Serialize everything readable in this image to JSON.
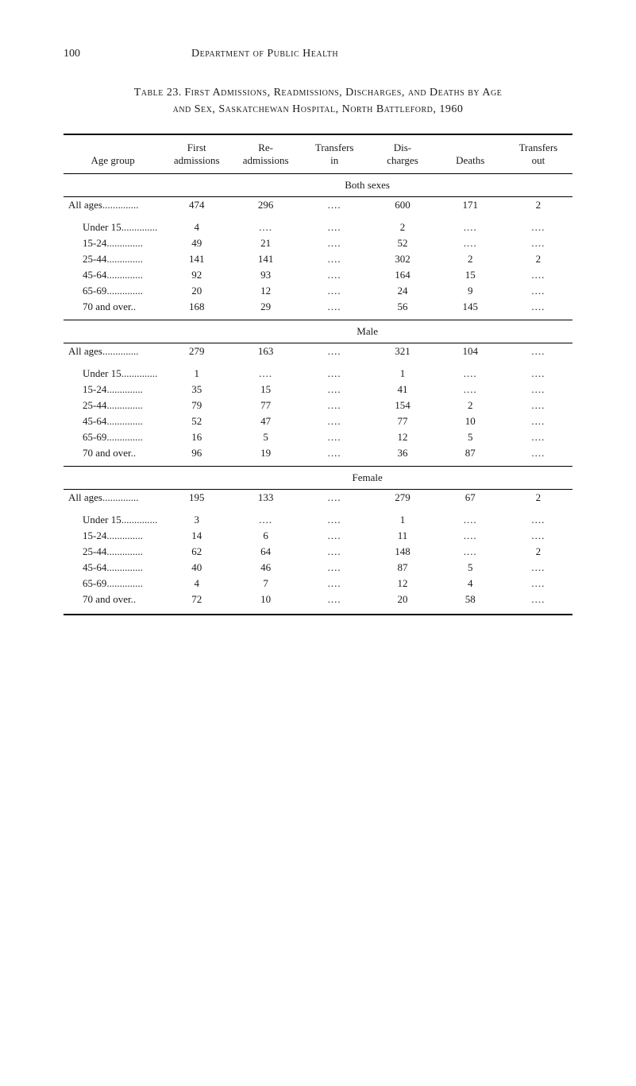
{
  "page": {
    "number": "100",
    "running_title": "Department of Public Health"
  },
  "table": {
    "caption_label": "Table 23.",
    "caption_title_line1": "First Admissions, Readmissions, Discharges, and Deaths by Age",
    "caption_title_line2": "and Sex, Saskatchewan Hospital, North Battleford, 1960",
    "columns": [
      "Age group",
      "First admissions",
      "Re- admissions",
      "Transfers in",
      "Dis- charges",
      "Deaths",
      "Transfers out"
    ],
    "column_headers": {
      "c0": "Age group",
      "c1_line1": "First",
      "c1_line2": "admissions",
      "c2_line1": "Re-",
      "c2_line2": "admissions",
      "c3_line1": "Transfers",
      "c3_line2": "in",
      "c4_line1": "Dis-",
      "c4_line2": "charges",
      "c5": "Deaths",
      "c6_line1": "Transfers",
      "c6_line2": "out"
    },
    "ellipsis": "....",
    "sections": [
      {
        "title": "Both sexes",
        "totals": {
          "label": "All ages",
          "first": "474",
          "re": "296",
          "tin": "....",
          "dis": "600",
          "deaths": "171",
          "tout": "2"
        },
        "rows": [
          {
            "label": "Under 15",
            "first": "4",
            "re": "....",
            "tin": "....",
            "dis": "2",
            "deaths": "....",
            "tout": "...."
          },
          {
            "label": "15-24",
            "first": "49",
            "re": "21",
            "tin": "....",
            "dis": "52",
            "deaths": "....",
            "tout": "...."
          },
          {
            "label": "25-44",
            "first": "141",
            "re": "141",
            "tin": "....",
            "dis": "302",
            "deaths": "2",
            "tout": "2"
          },
          {
            "label": "45-64",
            "first": "92",
            "re": "93",
            "tin": "....",
            "dis": "164",
            "deaths": "15",
            "tout": "...."
          },
          {
            "label": "65-69",
            "first": "20",
            "re": "12",
            "tin": "....",
            "dis": "24",
            "deaths": "9",
            "tout": "...."
          },
          {
            "label": "70 and over..",
            "first": "168",
            "re": "29",
            "tin": "....",
            "dis": "56",
            "deaths": "145",
            "tout": "...."
          }
        ]
      },
      {
        "title": "Male",
        "totals": {
          "label": "All ages",
          "first": "279",
          "re": "163",
          "tin": "....",
          "dis": "321",
          "deaths": "104",
          "tout": "...."
        },
        "rows": [
          {
            "label": "Under 15",
            "first": "1",
            "re": "....",
            "tin": "....",
            "dis": "1",
            "deaths": "....",
            "tout": "...."
          },
          {
            "label": "15-24",
            "first": "35",
            "re": "15",
            "tin": "....",
            "dis": "41",
            "deaths": "....",
            "tout": "...."
          },
          {
            "label": "25-44",
            "first": "79",
            "re": "77",
            "tin": "....",
            "dis": "154",
            "deaths": "2",
            "tout": "...."
          },
          {
            "label": "45-64",
            "first": "52",
            "re": "47",
            "tin": "....",
            "dis": "77",
            "deaths": "10",
            "tout": "...."
          },
          {
            "label": "65-69",
            "first": "16",
            "re": "5",
            "tin": "....",
            "dis": "12",
            "deaths": "5",
            "tout": "...."
          },
          {
            "label": "70 and over..",
            "first": "96",
            "re": "19",
            "tin": "....",
            "dis": "36",
            "deaths": "87",
            "tout": "...."
          }
        ]
      },
      {
        "title": "Female",
        "totals": {
          "label": "All ages",
          "first": "195",
          "re": "133",
          "tin": "....",
          "dis": "279",
          "deaths": "67",
          "tout": "2"
        },
        "rows": [
          {
            "label": "Under 15",
            "first": "3",
            "re": "....",
            "tin": "....",
            "dis": "1",
            "deaths": "....",
            "tout": "...."
          },
          {
            "label": "15-24",
            "first": "14",
            "re": "6",
            "tin": "....",
            "dis": "11",
            "deaths": "....",
            "tout": "...."
          },
          {
            "label": "25-44",
            "first": "62",
            "re": "64",
            "tin": "....",
            "dis": "148",
            "deaths": "....",
            "tout": "2"
          },
          {
            "label": "45-64",
            "first": "40",
            "re": "46",
            "tin": "....",
            "dis": "87",
            "deaths": "5",
            "tout": "...."
          },
          {
            "label": "65-69",
            "first": "4",
            "re": "7",
            "tin": "....",
            "dis": "12",
            "deaths": "4",
            "tout": "...."
          },
          {
            "label": "70 and over..",
            "first": "72",
            "re": "10",
            "tin": "....",
            "dis": "20",
            "deaths": "58",
            "tout": "...."
          }
        ]
      }
    ]
  },
  "style": {
    "font_family": "Georgia, 'Times New Roman', serif",
    "text_color": "#1a1a1a",
    "background_color": "#ffffff",
    "rule_color": "#000000",
    "body_font_size_pt": 13,
    "caption_font_size_pt": 14
  }
}
